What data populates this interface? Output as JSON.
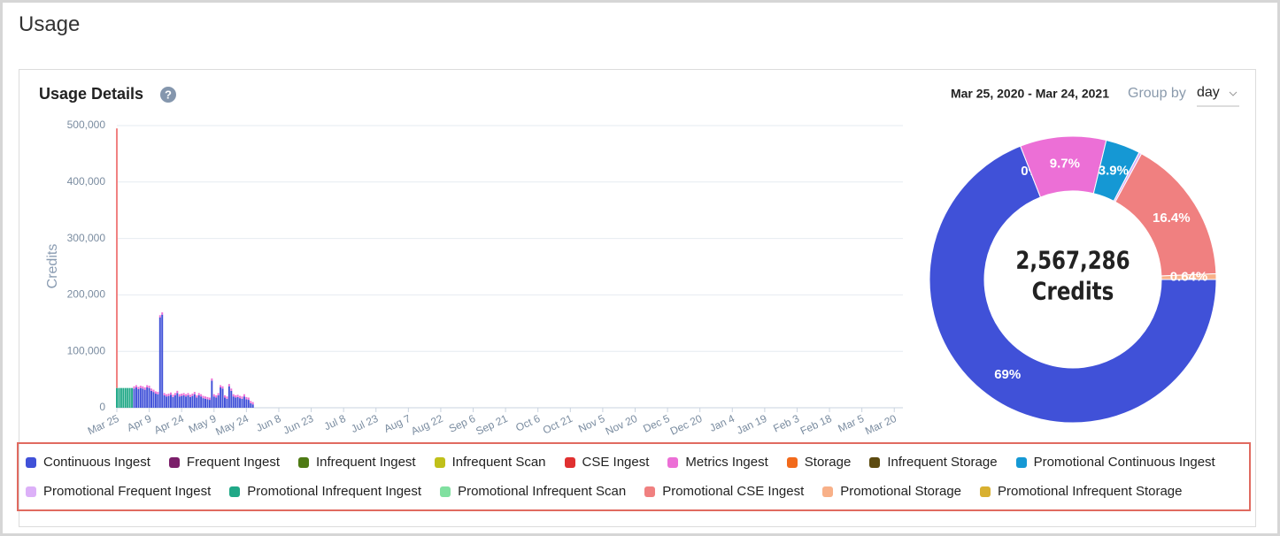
{
  "page_title": "Usage",
  "panel": {
    "title": "Usage Details",
    "date_range": "Mar 25, 2020 - Mar 24, 2021",
    "group_by_label": "Group by",
    "group_by_value": "day"
  },
  "chart_data": [
    {
      "type": "bar",
      "stacked": true,
      "y_label": "Credits",
      "grid": true,
      "xlim": [
        0,
        364
      ],
      "ylim": [
        0,
        500000
      ],
      "yticks": [
        0,
        {
          "value": 100000,
          "label": "100,000"
        },
        {
          "value": 200000,
          "label": "200,000"
        },
        {
          "value": 300000,
          "label": "300,000"
        },
        {
          "value": 400000,
          "label": "400,000"
        },
        {
          "value": 500000,
          "label": "500,000"
        }
      ],
      "xticks": [
        {
          "value": 0,
          "label": "Mar 25"
        },
        {
          "value": 15,
          "label": "Apr 9"
        },
        {
          "value": 30,
          "label": "Apr 24"
        },
        {
          "value": 45,
          "label": "May 9"
        },
        {
          "value": 60,
          "label": "May 24"
        },
        {
          "value": 75,
          "label": "Jun 8"
        },
        {
          "value": 90,
          "label": "Jun 23"
        },
        {
          "value": 105,
          "label": "Jul 8"
        },
        {
          "value": 120,
          "label": "Jul 23"
        },
        {
          "value": 135,
          "label": "Aug 7"
        },
        {
          "value": 150,
          "label": "Aug 22"
        },
        {
          "value": 165,
          "label": "Sep 6"
        },
        {
          "value": 180,
          "label": "Sep 21"
        },
        {
          "value": 195,
          "label": "Oct 6"
        },
        {
          "value": 210,
          "label": "Oct 21"
        },
        {
          "value": 225,
          "label": "Nov 5"
        },
        {
          "value": 240,
          "label": "Nov 20"
        },
        {
          "value": 255,
          "label": "Dec 5"
        },
        {
          "value": 270,
          "label": "Dec 20"
        },
        {
          "value": 285,
          "label": "Jan 4"
        },
        {
          "value": 300,
          "label": "Jan 19"
        },
        {
          "value": 315,
          "label": "Feb 3"
        },
        {
          "value": 330,
          "label": "Feb 18"
        },
        {
          "value": 345,
          "label": "Mar 5"
        },
        {
          "value": 360,
          "label": "Mar 20"
        }
      ],
      "x": [
        0,
        1,
        2,
        3,
        4,
        5,
        6,
        7,
        8,
        9,
        10,
        11,
        12,
        13,
        14,
        15,
        16,
        17,
        18,
        19,
        20,
        21,
        22,
        23,
        24,
        25,
        26,
        27,
        28,
        29,
        30,
        31,
        32,
        33,
        34,
        35,
        36,
        37,
        38,
        39,
        40,
        41,
        42,
        43,
        44,
        45,
        46,
        47,
        48,
        49,
        50,
        51,
        52,
        53,
        54,
        55,
        56,
        57,
        58,
        59,
        60,
        61,
        62,
        63
      ],
      "series": [
        {
          "color": "#20a887",
          "values": [
            35000,
            35000,
            35000,
            35000,
            35000,
            35000,
            35000,
            35000,
            0,
            0,
            0,
            0,
            0,
            0,
            0,
            0,
            0,
            0,
            0,
            0,
            0,
            0,
            0,
            0,
            0,
            0,
            0,
            0,
            0,
            0,
            0,
            0,
            0,
            0,
            0,
            0,
            0,
            0,
            0,
            0,
            0,
            0,
            0,
            0,
            0,
            0,
            0,
            0,
            0,
            0,
            0,
            0,
            0,
            0,
            0,
            0,
            0,
            0,
            0,
            0,
            0,
            0,
            0,
            0
          ]
        },
        {
          "color": "#4051d8",
          "values": [
            0,
            0,
            0,
            0,
            0,
            0,
            0,
            0,
            34000,
            36000,
            33000,
            35000,
            34000,
            32000,
            36000,
            35000,
            30000,
            28000,
            25000,
            24000,
            160000,
            165000,
            22000,
            20000,
            21000,
            23000,
            19000,
            22000,
            26000,
            20000,
            21000,
            22000,
            20000,
            22000,
            19000,
            21000,
            24000,
            18000,
            22000,
            20000,
            17000,
            16000,
            15000,
            14000,
            48000,
            20000,
            18000,
            22000,
            36000,
            34000,
            18000,
            16000,
            38000,
            30000,
            20000,
            18000,
            19000,
            17000,
            16000,
            20000,
            15000,
            14000,
            8000,
            6000
          ]
        },
        {
          "color": "#ec6fd6",
          "values": [
            0,
            0,
            0,
            0,
            0,
            0,
            0,
            0,
            4000,
            4000,
            4000,
            4000,
            4000,
            4000,
            4000,
            4000,
            4000,
            4000,
            4000,
            4000,
            4000,
            4000,
            4000,
            4000,
            4000,
            4000,
            4000,
            4000,
            4000,
            4000,
            4000,
            4000,
            4000,
            4000,
            4000,
            4000,
            4000,
            4000,
            4000,
            4000,
            4000,
            4000,
            4000,
            4000,
            4000,
            4000,
            4000,
            4000,
            4000,
            4000,
            4000,
            4000,
            4000,
            4000,
            4000,
            4000,
            4000,
            4000,
            4000,
            4000,
            4000,
            4000,
            4000,
            4000
          ]
        },
        {
          "color": "#f08080",
          "values": [
            460000,
            0,
            0,
            0,
            0,
            0,
            0,
            0,
            0,
            0,
            0,
            0,
            0,
            0,
            0,
            0,
            0,
            0,
            0,
            0,
            0,
            0,
            0,
            0,
            0,
            0,
            0,
            0,
            0,
            0,
            0,
            0,
            0,
            0,
            0,
            0,
            0,
            0,
            0,
            0,
            0,
            0,
            0,
            0,
            0,
            0,
            0,
            0,
            0,
            0,
            0,
            0,
            0,
            0,
            0,
            0,
            0,
            0,
            0,
            0,
            0,
            0,
            0,
            0
          ]
        }
      ]
    },
    {
      "type": "pie",
      "donut": true,
      "center_value": "2,567,286",
      "center_unit": "Credits",
      "categories": [
        "Continuous Ingest",
        "Frequent Ingest",
        "Infrequent Ingest",
        "Infrequent Scan",
        "CSE Ingest",
        "Metrics Ingest",
        "Storage",
        "Infrequent Storage",
        "Promotional Continuous Ingest",
        "Promotional Frequent Ingest",
        "Promotional Infrequent Ingest",
        "Promotional Infrequent Scan",
        "Promotional CSE Ingest",
        "Promotional Storage",
        "Promotional Infrequent Storage"
      ],
      "colors": [
        "#4051d8",
        "#7b1f6a",
        "#4e7a14",
        "#c0c01a",
        "#e03030",
        "#ec6fd6",
        "#f26a1b",
        "#5c4a10",
        "#1598d4",
        "#dcb0f8",
        "#20a887",
        "#80e0a0",
        "#f08080",
        "#f8b088",
        "#d8b030"
      ],
      "values": [
        69,
        0,
        0,
        0,
        0,
        9.7,
        0,
        0,
        3.9,
        0.3,
        0,
        0,
        16.4,
        0.64,
        0
      ],
      "value_labels": [
        "69%",
        "0%",
        null,
        null,
        null,
        "9.7%",
        null,
        null,
        "3.9%",
        null,
        null,
        null,
        "16.4%",
        "0.64%",
        null
      ]
    }
  ]
}
